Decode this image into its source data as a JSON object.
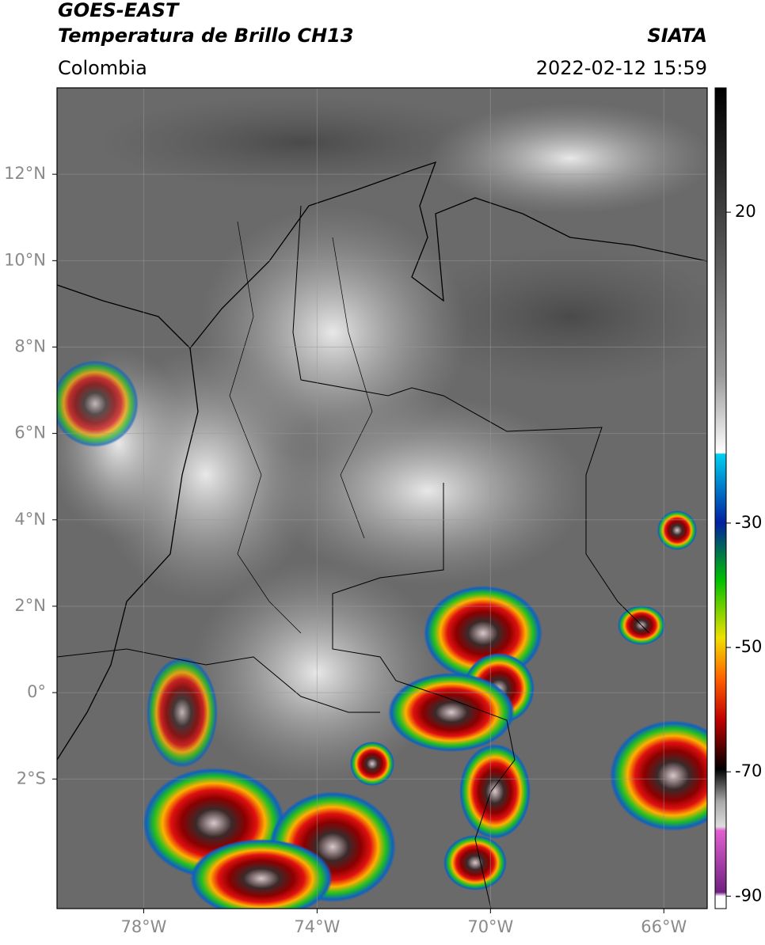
{
  "header": {
    "title": "GOES-EAST",
    "subtitle": "Temperatura de Brillo CH13",
    "source": "SIATA",
    "region": "Colombia",
    "datetime": "2022-02-12 15:59"
  },
  "map": {
    "xlim": [
      -80,
      -65
    ],
    "ylim": [
      -5,
      14
    ],
    "xticks": [
      {
        "value": -78,
        "label": "78°W"
      },
      {
        "value": -74,
        "label": "74°W"
      },
      {
        "value": -70,
        "label": "70°W"
      },
      {
        "value": -66,
        "label": "66°W"
      }
    ],
    "yticks": [
      {
        "value": -2,
        "label": "2°S"
      },
      {
        "value": 0,
        "label": "0°"
      },
      {
        "value": 2,
        "label": "2°N"
      },
      {
        "value": 4,
        "label": "4°N"
      },
      {
        "value": 6,
        "label": "6°N"
      },
      {
        "value": 8,
        "label": "8°N"
      },
      {
        "value": 10,
        "label": "10°N"
      },
      {
        "value": 12,
        "label": "12°N"
      }
    ],
    "grid": true
  },
  "colorbar": {
    "lim": [
      -92,
      40
    ],
    "ticks": [
      20,
      -30,
      -50,
      -70,
      -90
    ]
  }
}
